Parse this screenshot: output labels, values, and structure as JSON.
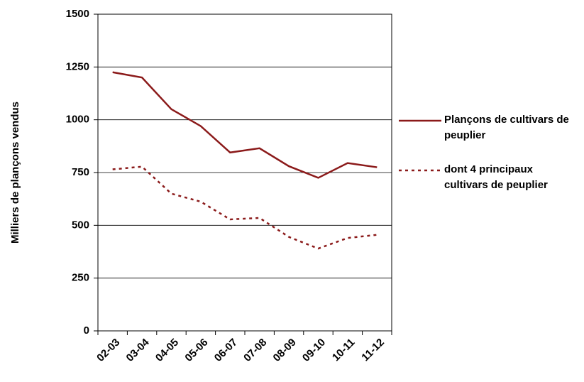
{
  "chart_data": {
    "type": "line",
    "y_label": "Milliers de plançons vendus",
    "categories": [
      "02-03",
      "03-04",
      "04-05",
      "05-06",
      "06-07",
      "07-08",
      "08-09",
      "09-10",
      "10-11",
      "11-12"
    ],
    "series": [
      {
        "name": "Plançons de cultivars de peuplier",
        "color": "#8b1a1a",
        "line_style": "solid",
        "values": [
          1225,
          1200,
          1050,
          970,
          845,
          865,
          780,
          725,
          795,
          775
        ]
      },
      {
        "name": "dont 4 principaux cultivars de peuplier",
        "color": "#8b1a1a",
        "line_style": "dotted",
        "values": [
          765,
          778,
          650,
          612,
          528,
          535,
          445,
          390,
          440,
          455
        ]
      }
    ],
    "ylim": [
      0,
      1500
    ],
    "yticks": [
      0,
      250,
      500,
      750,
      1000,
      1250,
      1500
    ],
    "grid": true,
    "legend": "right"
  }
}
